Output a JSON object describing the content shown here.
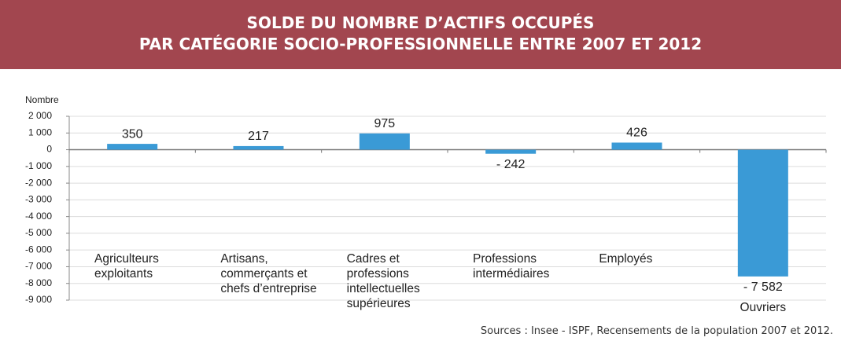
{
  "chart_data": {
    "type": "bar",
    "title": "SOLDE DU NOMBRE D’ACTIFS OCCUPÉS",
    "subtitle": "PAR CATÉGORIE SOCIO-PROFESSIONNELLE ENTRE 2007 ET 2012",
    "y_label": "Nombre",
    "source": "Sources : Insee - ISPF, Recensements de la population 2007 et 2012.",
    "categories": [
      "Agriculteurs exploitants",
      "Artisans, commerçants et chefs d’entreprise",
      "Cadres et professions intellectuelles supérieures",
      "Professions intermédiaires",
      "Employés",
      "Ouvriers"
    ],
    "values": [
      350,
      217,
      975,
      -242,
      426,
      -7582
    ],
    "value_labels": [
      "350",
      "217",
      "975",
      "- 242",
      "426",
      "- 7 582"
    ],
    "color": "#3a9ad6",
    "ylim": [
      -9000,
      2000
    ],
    "yticks": [
      {
        "value": 2000,
        "label": "2 000"
      },
      {
        "value": 1000,
        "label": "1 000"
      },
      0,
      {
        "value": -1000,
        "label": "-1 000"
      },
      {
        "value": -2000,
        "label": "-2 000"
      },
      {
        "value": -3000,
        "label": "-3 000"
      },
      {
        "value": -4000,
        "label": "-4 000"
      },
      {
        "value": -5000,
        "label": "-5 000"
      },
      {
        "value": -6000,
        "label": "-6 000"
      },
      {
        "value": -7000,
        "label": "-7 000"
      },
      {
        "value": -8000,
        "label": "-8 000"
      },
      {
        "value": -9000,
        "label": "-9 000"
      }
    ],
    "grid": true
  }
}
